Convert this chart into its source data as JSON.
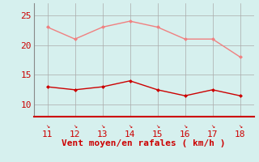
{
  "x": [
    11,
    12,
    13,
    14,
    15,
    16,
    17,
    18
  ],
  "y_rafales": [
    23,
    21,
    23,
    24,
    23,
    21,
    21,
    18
  ],
  "y_moyen": [
    13,
    12.5,
    13,
    14,
    12.5,
    11.5,
    12.5,
    11.5
  ],
  "color_rafales": "#f08080",
  "color_moyen": "#cc0000",
  "background_color": "#d6f0ee",
  "grid_color": "#aaaaaa",
  "spine_color": "#888888",
  "axis_color": "#cc0000",
  "xlabel": "Vent moyen/en rafales ( km/h )",
  "xlabel_color": "#cc0000",
  "bottom_line_color": "#cc0000",
  "ylim": [
    8,
    27
  ],
  "xlim": [
    10.5,
    18.5
  ],
  "yticks": [
    10,
    15,
    20,
    25
  ],
  "xticks": [
    11,
    12,
    13,
    14,
    15,
    16,
    17,
    18
  ],
  "marker": "D",
  "marker_size": 2.5,
  "line_width": 1.0,
  "font_size": 8
}
